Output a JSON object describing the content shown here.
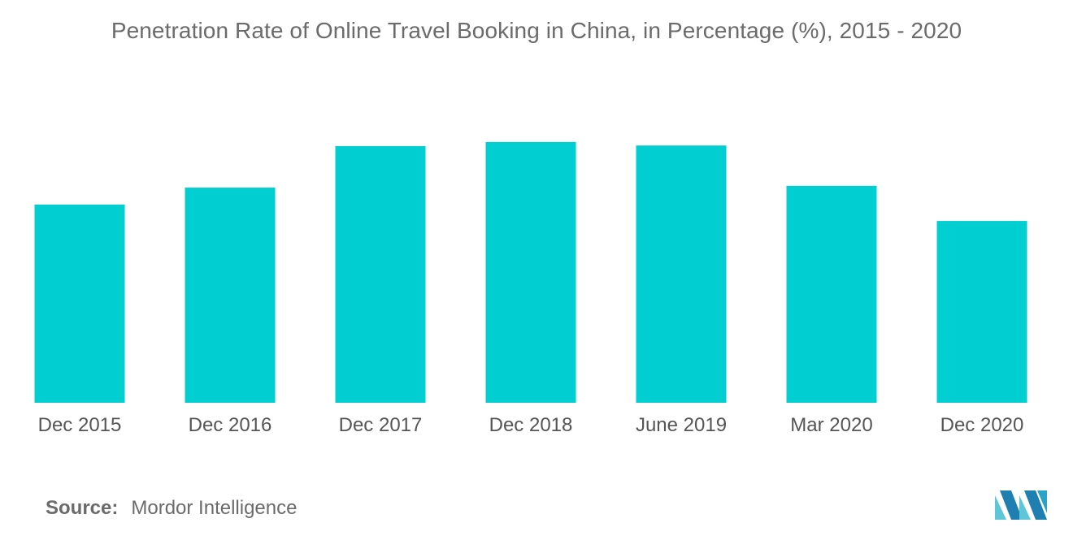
{
  "chart_data": {
    "type": "bar",
    "title": "Penetration Rate of Online Travel Booking in China, in Percentage (%), 2015 - 2020",
    "categories": [
      "Dec 2015",
      "Dec 2016",
      "Dec 2017",
      "Dec 2018",
      "June 2019",
      "Mar 2020",
      "Dec 2020"
    ],
    "values": [
      33.9,
      36.8,
      43.9,
      44.6,
      44.0,
      37.1,
      31.1
    ],
    "ylim": [
      0,
      50
    ],
    "xlabel": "",
    "ylabel": "",
    "grid": false,
    "bar_color": "#00ced1"
  },
  "source": {
    "label": "Source:",
    "text": "Mordor Intelligence"
  },
  "logo": {
    "icon": "mordor-intelligence-logo",
    "color": "#2aa3c9"
  }
}
